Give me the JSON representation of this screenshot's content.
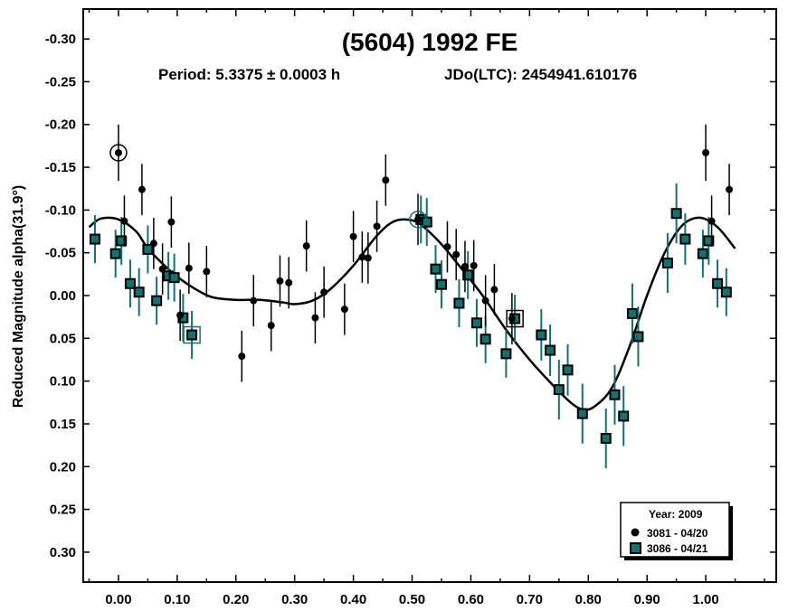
{
  "chart_data": {
    "type": "scatter",
    "title": "(5604) 1992 FE",
    "subtitle_period": "Period: 5.3375 ± 0.0003 h",
    "subtitle_epoch": "JDo(LTC): 2454941.610176",
    "xlabel": "",
    "ylabel": "Reduced Magnitude alpha(31.9°)",
    "xlim": [
      -0.06,
      1.12
    ],
    "ylim": [
      -0.335,
      0.335
    ],
    "y_inverted": true,
    "x_ticks": [
      "0.00",
      "0.10",
      "0.20",
      "0.30",
      "0.40",
      "0.50",
      "0.60",
      "0.70",
      "0.80",
      "0.90",
      "1.00"
    ],
    "y_ticks": [
      "-0.30",
      "-0.25",
      "-0.20",
      "-0.15",
      "-0.10",
      "-0.05",
      "0.00",
      "0.05",
      "0.10",
      "0.15",
      "0.20",
      "0.25",
      "0.30"
    ],
    "grid": false,
    "legend": {
      "placement": "bottom-right",
      "title": "Year: 2009",
      "entries": [
        "3081 - 04/20",
        "3086 - 04/21"
      ]
    },
    "colors": {
      "series1": "#000000",
      "series2": "#1b6e6e",
      "curve": "#000000"
    },
    "series": [
      {
        "name": "3081 - 04/20",
        "marker": "circle",
        "points": [
          {
            "x": 0.0,
            "y": -0.167,
            "e": 0.033
          },
          {
            "x": 0.01,
            "y": -0.087,
            "e": 0.03
          },
          {
            "x": 0.04,
            "y": -0.124,
            "e": 0.03
          },
          {
            "x": 0.06,
            "y": -0.061,
            "e": 0.03
          },
          {
            "x": 0.075,
            "y": -0.031,
            "e": 0.03
          },
          {
            "x": 0.09,
            "y": -0.086,
            "e": 0.03
          },
          {
            "x": 0.105,
            "y": 0.023,
            "e": 0.03
          },
          {
            "x": 0.12,
            "y": -0.032,
            "e": 0.03
          },
          {
            "x": 0.15,
            "y": -0.028,
            "e": 0.03
          },
          {
            "x": 0.21,
            "y": 0.071,
            "e": 0.03
          },
          {
            "x": 0.23,
            "y": 0.006,
            "e": 0.03
          },
          {
            "x": 0.26,
            "y": 0.035,
            "e": 0.03
          },
          {
            "x": 0.275,
            "y": -0.017,
            "e": 0.03
          },
          {
            "x": 0.29,
            "y": -0.015,
            "e": 0.03
          },
          {
            "x": 0.32,
            "y": -0.058,
            "e": 0.03
          },
          {
            "x": 0.335,
            "y": 0.026,
            "e": 0.03
          },
          {
            "x": 0.35,
            "y": -0.004,
            "e": 0.03
          },
          {
            "x": 0.385,
            "y": 0.016,
            "e": 0.03
          },
          {
            "x": 0.4,
            "y": -0.069,
            "e": 0.03
          },
          {
            "x": 0.415,
            "y": -0.045,
            "e": 0.03
          },
          {
            "x": 0.425,
            "y": -0.044,
            "e": 0.03
          },
          {
            "x": 0.44,
            "y": -0.081,
            "e": 0.03
          },
          {
            "x": 0.455,
            "y": -0.135,
            "e": 0.03
          },
          {
            "x": 0.51,
            "y": -0.089,
            "e": 0.03
          },
          {
            "x": 0.56,
            "y": -0.057,
            "e": 0.03
          },
          {
            "x": 0.575,
            "y": -0.048,
            "e": 0.03
          },
          {
            "x": 0.59,
            "y": -0.034,
            "e": 0.03
          },
          {
            "x": 0.605,
            "y": -0.035,
            "e": 0.03
          },
          {
            "x": 0.625,
            "y": 0.006,
            "e": 0.03
          },
          {
            "x": 0.64,
            "y": -0.007,
            "e": 0.03
          },
          {
            "x": 0.67,
            "y": 0.027,
            "e": 0.03
          },
          {
            "x": 1.0,
            "y": -0.167,
            "e": 0.033
          },
          {
            "x": 1.01,
            "y": -0.087,
            "e": 0.03
          },
          {
            "x": 1.04,
            "y": -0.124,
            "e": 0.03
          }
        ]
      },
      {
        "name": "3086 - 04/21",
        "marker": "square",
        "points": [
          {
            "x": -0.04,
            "y": -0.066,
            "e": 0.028
          },
          {
            "x": -0.005,
            "y": -0.049,
            "e": 0.028
          },
          {
            "x": 0.005,
            "y": -0.064,
            "e": 0.028
          },
          {
            "x": 0.02,
            "y": -0.014,
            "e": 0.028
          },
          {
            "x": 0.035,
            "y": -0.004,
            "e": 0.028
          },
          {
            "x": 0.05,
            "y": -0.054,
            "e": 0.028
          },
          {
            "x": 0.065,
            "y": 0.006,
            "e": 0.028
          },
          {
            "x": 0.085,
            "y": -0.023,
            "e": 0.028
          },
          {
            "x": 0.095,
            "y": -0.021,
            "e": 0.028
          },
          {
            "x": 0.11,
            "y": 0.026,
            "e": 0.028
          },
          {
            "x": 0.125,
            "y": 0.046,
            "e": 0.028
          },
          {
            "x": 0.515,
            "y": -0.089,
            "e": 0.028
          },
          {
            "x": 0.525,
            "y": -0.086,
            "e": 0.028
          },
          {
            "x": 0.54,
            "y": -0.031,
            "e": 0.028
          },
          {
            "x": 0.55,
            "y": -0.013,
            "e": 0.028
          },
          {
            "x": 0.58,
            "y": 0.009,
            "e": 0.028
          },
          {
            "x": 0.595,
            "y": -0.024,
            "e": 0.028
          },
          {
            "x": 0.61,
            "y": 0.032,
            "e": 0.028
          },
          {
            "x": 0.625,
            "y": 0.051,
            "e": 0.028
          },
          {
            "x": 0.66,
            "y": 0.068,
            "e": 0.028
          },
          {
            "x": 0.675,
            "y": 0.027,
            "e": 0.028
          },
          {
            "x": 0.72,
            "y": 0.046,
            "e": 0.03
          },
          {
            "x": 0.735,
            "y": 0.064,
            "e": 0.03
          },
          {
            "x": 0.75,
            "y": 0.11,
            "e": 0.035
          },
          {
            "x": 0.765,
            "y": 0.087,
            "e": 0.03
          },
          {
            "x": 0.79,
            "y": 0.138,
            "e": 0.035
          },
          {
            "x": 0.83,
            "y": 0.167,
            "e": 0.035
          },
          {
            "x": 0.845,
            "y": 0.116,
            "e": 0.035
          },
          {
            "x": 0.86,
            "y": 0.141,
            "e": 0.035
          },
          {
            "x": 0.875,
            "y": 0.021,
            "e": 0.035
          },
          {
            "x": 0.885,
            "y": 0.048,
            "e": 0.035
          },
          {
            "x": 0.935,
            "y": -0.038,
            "e": 0.035
          },
          {
            "x": 0.95,
            "y": -0.096,
            "e": 0.035
          },
          {
            "x": 0.965,
            "y": -0.066,
            "e": 0.03
          },
          {
            "x": 0.995,
            "y": -0.049,
            "e": 0.028
          },
          {
            "x": 1.005,
            "y": -0.064,
            "e": 0.028
          },
          {
            "x": 1.02,
            "y": -0.014,
            "e": 0.028
          },
          {
            "x": 1.035,
            "y": -0.004,
            "e": 0.028
          }
        ]
      }
    ],
    "curve": [
      [
        -0.05,
        -0.08
      ],
      [
        -0.03,
        -0.09
      ],
      [
        0.0,
        -0.089
      ],
      [
        0.03,
        -0.075
      ],
      [
        0.05,
        -0.055
      ],
      [
        0.08,
        -0.034
      ],
      [
        0.1,
        -0.022
      ],
      [
        0.13,
        -0.008
      ],
      [
        0.16,
        0.002
      ],
      [
        0.2,
        0.005
      ],
      [
        0.24,
        0.005
      ],
      [
        0.28,
        0.008
      ],
      [
        0.3,
        0.01
      ],
      [
        0.33,
        0.006
      ],
      [
        0.36,
        -0.007
      ],
      [
        0.4,
        -0.035
      ],
      [
        0.44,
        -0.07
      ],
      [
        0.47,
        -0.087
      ],
      [
        0.5,
        -0.088
      ],
      [
        0.52,
        -0.08
      ],
      [
        0.55,
        -0.06
      ],
      [
        0.58,
        -0.035
      ],
      [
        0.62,
        0.0
      ],
      [
        0.66,
        0.04
      ],
      [
        0.7,
        0.075
      ],
      [
        0.74,
        0.105
      ],
      [
        0.77,
        0.125
      ],
      [
        0.79,
        0.133
      ],
      [
        0.81,
        0.13
      ],
      [
        0.84,
        0.108
      ],
      [
        0.87,
        0.06
      ],
      [
        0.9,
        0.0
      ],
      [
        0.93,
        -0.05
      ],
      [
        0.96,
        -0.082
      ],
      [
        0.99,
        -0.091
      ],
      [
        1.02,
        -0.08
      ],
      [
        1.05,
        -0.055
      ]
    ],
    "highlighted": [
      {
        "x": 0.0,
        "y": -0.167,
        "shape": "circle"
      },
      {
        "x": 0.51,
        "y": -0.089,
        "shape": "circle"
      },
      {
        "x": 0.125,
        "y": 0.046,
        "shape": "square"
      },
      {
        "x": 0.675,
        "y": 0.027,
        "shape": "square"
      }
    ]
  }
}
